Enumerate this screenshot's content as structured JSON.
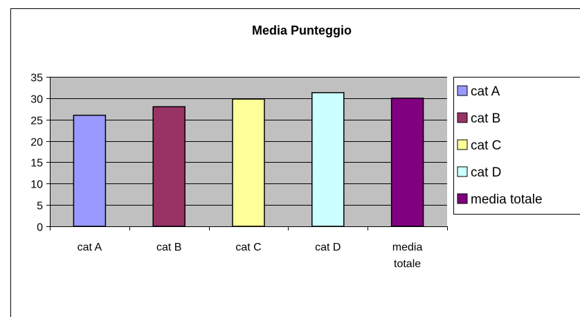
{
  "chart_data": {
    "type": "bar",
    "title": "Media Punteggio",
    "categories": [
      "cat A",
      "cat B",
      "cat C",
      "cat D",
      "media totale"
    ],
    "category_lines": [
      [
        "cat A"
      ],
      [
        "cat B"
      ],
      [
        "cat C"
      ],
      [
        "cat D"
      ],
      [
        "media",
        "totale"
      ]
    ],
    "values": [
      26,
      28,
      29.8,
      31.3,
      30
    ],
    "bar_colors": [
      "#9999ff",
      "#993366",
      "#ffff99",
      "#ccffff",
      "#800080"
    ],
    "ylim": [
      0,
      35
    ],
    "yticks": [
      0,
      5,
      10,
      15,
      20,
      25,
      30,
      35
    ],
    "grid": true,
    "plot_background": "#c0c0c0",
    "legend_position": "right",
    "legend": [
      "cat A",
      "cat B",
      "cat C",
      "cat D",
      "media totale"
    ],
    "xlabel": "",
    "ylabel": ""
  }
}
